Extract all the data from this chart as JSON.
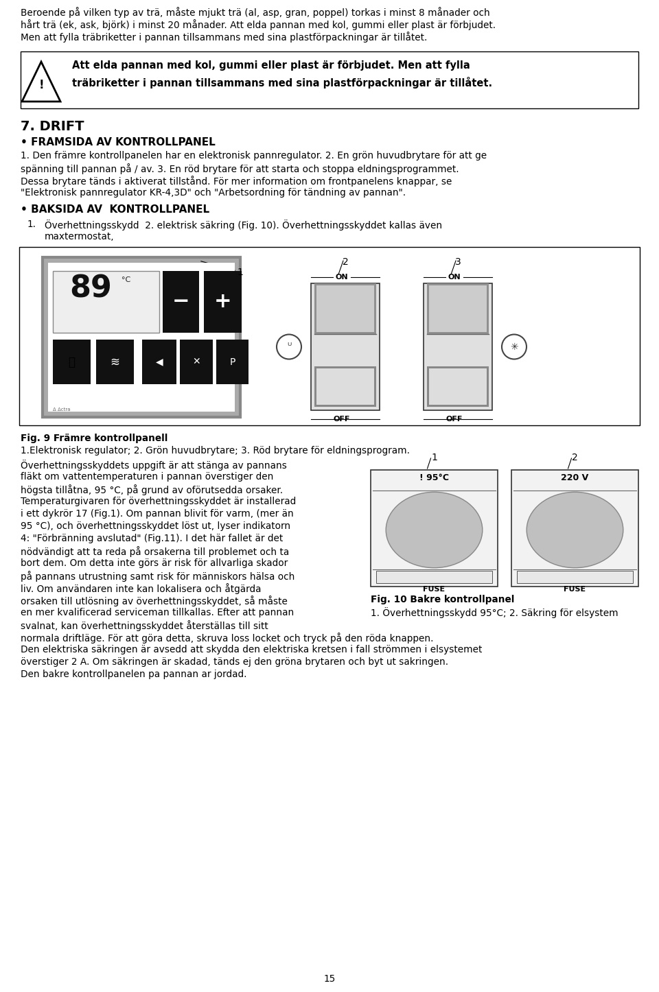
{
  "page_number": "15",
  "bg_color": "#ffffff",
  "text_color": "#000000",
  "body_fs": 9.8,
  "heading1_fs": 14,
  "heading2_fs": 11,
  "warning_fs": 10.5,
  "para1": "Beroende på vilken typ av trä, måste mjukt trä (al, asp, gran, poppel) torkas i minst 8 månader och",
  "para2": "hårt trä (ek, ask, björk) i minst 20 månader. Att elda pannan med kol, gummi eller plast är förbjudet.",
  "para3": "Men att fylla träbriketter i pannan tillsammans med sina plastförpackningar är tillåtet.",
  "warn1": "Att elda pannan med kol, gummi eller plast är förbjudet. Men att fylla",
  "warn2": "träbriketter i pannan tillsammans med sina plastförpackningar är tillåtet.",
  "h_drift": "7. DRIFT",
  "h_framsida": "• FRAMSIDA AV KONTROLLPANEL",
  "t_framsida1": "1. Den främre kontrollpanelen har en elektronisk pannregulator. 2. En grön huvudbrytare för att ge",
  "t_framsida2": "spänning till pannan på / av. 3. En röd brytare för att starta och stoppa eldningsprogrammet.",
  "t_framsida3": "Dessa brytare tänds i aktiverat tillstånd. För mer information om frontpanelens knappar, se",
  "t_framsida4": "\"Elektronisk pannregulator KR-4,3D\" och \"Arbetsordning för tändning av pannan\".",
  "h_baksida": "• BAKSIDA AV  KONTROLLPANEL",
  "t_baksida1": "Överhettningsskydd  2. elektrisk säkring (Fig. 10). Överhettningsskyddet kallas även",
  "t_baksida2": "maxtermostat,",
  "fig9_cap_bold": "Fig. 9 Främre kontrollpanell",
  "fig9_cap_normal": "1.Elektronisk regulator; 2. Grön huvudbrytare; 3. Röd brytare för eldningsprogram.",
  "left_col": [
    "Överhettningsskyddets uppgift är att stänga av pannans",
    "fläkt om vattentemperaturen i pannan överstiger den",
    "högsta tillåtna, 95 °C, på grund av oförutsedda orsaker.",
    "Temperaturgivaren för överhettningsskyddet är installerad",
    "i ett dykrör 17 (Fig.1). Om pannan blivit för varm, (mer än",
    "95 °C), och överhettningsskyddet löst ut, lyser indikatorn",
    "4: \"Förbränning avslutad\" (Fig.11). I det här fallet är det",
    "nödvändigt att ta reda på orsakerna till problemet och ta",
    "bort dem. Om detta inte görs är risk för allvarliga skador",
    "på pannans utrustning samt risk för människors hälsa och",
    "liv. Om användaren inte kan lokalisera och åtgärda",
    "orsaken till utlösning av överhettningsskyddet, så måste",
    "en mer kvalificerad serviceman tillkallas. Efter att pannan",
    "svalnat, kan överhettningsskyddet återställas till sitt"
  ],
  "full_col": [
    "normala driftläge. För att göra detta, skruva loss locket och tryck på den röda knappen.",
    "Den elektriska säkringen är avsedd att skydda den elektriska kretsen i fall strömmen i elsystemet",
    "överstiger 2 A. Om säkringen är skadad, tänds ej den gröna brytaren och byt ut sakringen.",
    "Den bakre kontrollpanelen pa pannan ar jordad."
  ],
  "fig10_cap_bold": "Fig. 10 Bakre kontrollpanel",
  "fig10_cap_normal": "1. Överhettningsskydd 95°C; 2. Säkring för elsystem"
}
